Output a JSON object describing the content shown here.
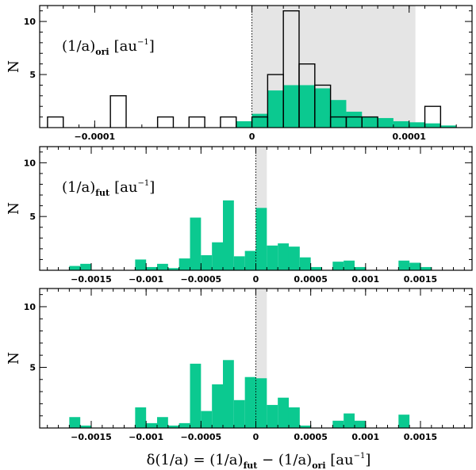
{
  "chart_data": [
    {
      "type": "histogram",
      "label_main": "(1/a)",
      "label_sub": "ori",
      "label_unit": "[au",
      "label_sup": "−1",
      "label_close": "]",
      "ylabel": "N",
      "xlim": [
        -0.000135,
        0.00014
      ],
      "ylim": [
        0,
        11.5
      ],
      "yticks": [
        5,
        10
      ],
      "xticks": [
        -0.0001,
        0,
        0.0001
      ],
      "xtick_labels": [
        "−0.0001",
        "0",
        "0.0001"
      ],
      "minor_step": 1e-05,
      "shade": [
        0,
        0.000104
      ],
      "zero_line": 0,
      "bin_width": 1e-05,
      "filled": [
        {
          "x0": -1e-05,
          "x1": 0.0,
          "n": 0.6
        },
        {
          "x0": 0.0,
          "x1": 1e-05,
          "n": 1.3
        },
        {
          "x0": 1e-05,
          "x1": 2e-05,
          "n": 3.5
        },
        {
          "x0": 2e-05,
          "x1": 3e-05,
          "n": 4.0
        },
        {
          "x0": 3e-05,
          "x1": 4e-05,
          "n": 4.0
        },
        {
          "x0": 4e-05,
          "x1": 5e-05,
          "n": 3.7
        },
        {
          "x0": 5e-05,
          "x1": 6e-05,
          "n": 2.6
        },
        {
          "x0": 6e-05,
          "x1": 7e-05,
          "n": 1.5
        },
        {
          "x0": 7e-05,
          "x1": 8e-05,
          "n": 1.0
        },
        {
          "x0": 8e-05,
          "x1": 9e-05,
          "n": 0.9
        },
        {
          "x0": 9e-05,
          "x1": 0.0001,
          "n": 0.6
        },
        {
          "x0": 0.0001,
          "x1": 0.00011,
          "n": 0.5
        },
        {
          "x0": 0.00011,
          "x1": 0.00012,
          "n": 0.4
        },
        {
          "x0": 0.00012,
          "x1": 0.00013,
          "n": 0.2
        }
      ],
      "outline": [
        {
          "x0": -0.00013,
          "x1": -0.00012,
          "n": 1
        },
        {
          "x0": -9e-05,
          "x1": -8e-05,
          "n": 3
        },
        {
          "x0": -6e-05,
          "x1": -5e-05,
          "n": 1
        },
        {
          "x0": -4e-05,
          "x1": -3e-05,
          "n": 1
        },
        {
          "x0": -2e-05,
          "x1": -1e-05,
          "n": 1
        },
        {
          "x0": 0.0,
          "x1": 1e-05,
          "n": 1
        },
        {
          "x0": 1e-05,
          "x1": 2e-05,
          "n": 5
        },
        {
          "x0": 2e-05,
          "x1": 3e-05,
          "n": 11
        },
        {
          "x0": 3e-05,
          "x1": 4e-05,
          "n": 6
        },
        {
          "x0": 4e-05,
          "x1": 5e-05,
          "n": 4
        },
        {
          "x0": 5e-05,
          "x1": 6e-05,
          "n": 1
        },
        {
          "x0": 6e-05,
          "x1": 7e-05,
          "n": 1
        },
        {
          "x0": 7e-05,
          "x1": 8e-05,
          "n": 1
        },
        {
          "x0": 0.00011,
          "x1": 0.00012,
          "n": 2
        }
      ]
    },
    {
      "type": "histogram",
      "label_main": "(1/a)",
      "label_sub": "fut",
      "label_unit": "[au",
      "label_sup": "−1",
      "label_close": "]",
      "ylabel": "N",
      "xlim": [
        -0.00197,
        0.00197
      ],
      "ylim": [
        0,
        11.5
      ],
      "yticks": [
        5,
        10
      ],
      "xticks": [
        -0.0015,
        -0.001,
        -0.0005,
        0,
        0.0005,
        0.001,
        0.0015
      ],
      "xtick_labels": [
        "−0.0015",
        "−0.001",
        "−0.0005",
        "0",
        "0.0005",
        "0.001",
        "0.0015"
      ],
      "minor_step": 0.0001,
      "shade": [
        0,
        0.0001
      ],
      "zero_line": 0,
      "bin_width": 0.0001,
      "filled": [
        {
          "x0": -0.0017,
          "x1": -0.0016,
          "n": 0.4
        },
        {
          "x0": -0.0016,
          "x1": -0.0015,
          "n": 0.6
        },
        {
          "x0": -0.0011,
          "x1": -0.001,
          "n": 1.0
        },
        {
          "x0": -0.001,
          "x1": -0.0009,
          "n": 0.3
        },
        {
          "x0": -0.0009,
          "x1": -0.0008,
          "n": 0.6
        },
        {
          "x0": -0.0008,
          "x1": -0.0007,
          "n": 0.2
        },
        {
          "x0": -0.0007,
          "x1": -0.0006,
          "n": 1.1
        },
        {
          "x0": -0.0006,
          "x1": -0.0005,
          "n": 4.9
        },
        {
          "x0": -0.0005,
          "x1": -0.0004,
          "n": 1.4
        },
        {
          "x0": -0.0004,
          "x1": -0.0003,
          "n": 2.6
        },
        {
          "x0": -0.0003,
          "x1": -0.0002,
          "n": 6.5
        },
        {
          "x0": -0.0002,
          "x1": -0.0001,
          "n": 1.3
        },
        {
          "x0": -0.0001,
          "x1": 0.0,
          "n": 1.8
        },
        {
          "x0": 0.0,
          "x1": 0.0001,
          "n": 5.8
        },
        {
          "x0": 0.0001,
          "x1": 0.0002,
          "n": 2.3
        },
        {
          "x0": 0.0002,
          "x1": 0.0003,
          "n": 2.5
        },
        {
          "x0": 0.0003,
          "x1": 0.0004,
          "n": 2.2
        },
        {
          "x0": 0.0004,
          "x1": 0.0005,
          "n": 1.2
        },
        {
          "x0": 0.0005,
          "x1": 0.0006,
          "n": 0.3
        },
        {
          "x0": 0.0007,
          "x1": 0.0008,
          "n": 0.8
        },
        {
          "x0": 0.0008,
          "x1": 0.0009,
          "n": 0.9
        },
        {
          "x0": 0.0009,
          "x1": 0.001,
          "n": 0.3
        },
        {
          "x0": 0.0013,
          "x1": 0.0014,
          "n": 0.9
        },
        {
          "x0": 0.0014,
          "x1": 0.0015,
          "n": 0.7
        },
        {
          "x0": 0.0015,
          "x1": 0.0016,
          "n": 0.3
        }
      ],
      "outline": []
    },
    {
      "type": "histogram",
      "label_main": "",
      "label_sub": "",
      "label_unit": "",
      "label_sup": "",
      "label_close": "",
      "ylabel": "N",
      "xlabel": "δ(1/a) = (1/a)fut − (1/a)ori [au−1]",
      "xlim": [
        -0.00197,
        0.00197
      ],
      "ylim": [
        0,
        11.5
      ],
      "yticks": [
        5,
        10
      ],
      "xticks": [
        -0.0015,
        -0.001,
        -0.0005,
        0,
        0.0005,
        0.001,
        0.0015
      ],
      "xtick_labels": [
        "−0.0015",
        "−0.001",
        "−0.0005",
        "0",
        "0.0005",
        "0.001",
        "0.0015"
      ],
      "minor_step": 0.0001,
      "shade": [
        0,
        0.0001
      ],
      "zero_line": 0,
      "bin_width": 0.0001,
      "filled": [
        {
          "x0": -0.0017,
          "x1": -0.0016,
          "n": 0.9
        },
        {
          "x0": -0.0016,
          "x1": -0.0015,
          "n": 0.2
        },
        {
          "x0": -0.0011,
          "x1": -0.001,
          "n": 1.7
        },
        {
          "x0": -0.001,
          "x1": -0.0009,
          "n": 0.4
        },
        {
          "x0": -0.0009,
          "x1": -0.0008,
          "n": 0.9
        },
        {
          "x0": -0.0008,
          "x1": -0.0007,
          "n": 0.2
        },
        {
          "x0": -0.0007,
          "x1": -0.0006,
          "n": 0.4
        },
        {
          "x0": -0.0006,
          "x1": -0.0005,
          "n": 5.3
        },
        {
          "x0": -0.0005,
          "x1": -0.0004,
          "n": 1.4
        },
        {
          "x0": -0.0004,
          "x1": -0.0003,
          "n": 3.6
        },
        {
          "x0": -0.0003,
          "x1": -0.0002,
          "n": 5.6
        },
        {
          "x0": -0.0002,
          "x1": -0.0001,
          "n": 2.3
        },
        {
          "x0": -0.0001,
          "x1": 0.0,
          "n": 4.2
        },
        {
          "x0": 0.0,
          "x1": 0.0001,
          "n": 4.1
        },
        {
          "x0": 0.0001,
          "x1": 0.0002,
          "n": 1.9
        },
        {
          "x0": 0.0002,
          "x1": 0.0003,
          "n": 2.5
        },
        {
          "x0": 0.0003,
          "x1": 0.0004,
          "n": 1.7
        },
        {
          "x0": 0.0004,
          "x1": 0.0005,
          "n": 0.2
        },
        {
          "x0": 0.0007,
          "x1": 0.0008,
          "n": 0.6
        },
        {
          "x0": 0.0008,
          "x1": 0.0009,
          "n": 1.2
        },
        {
          "x0": 0.0009,
          "x1": 0.001,
          "n": 0.6
        },
        {
          "x0": 0.0013,
          "x1": 0.0014,
          "n": 1.1
        }
      ],
      "outline": []
    }
  ],
  "colors": {
    "fill": "#0bc990",
    "shade": "#e5e5e5",
    "axis": "#000000",
    "outline": "#000000"
  },
  "xlabel_parts": {
    "delta": "δ(1/a) = (1/a)",
    "sub1": "fut",
    "minus": " − (1/a)",
    "sub2": "ori",
    "unit": " [au",
    "sup": "−1",
    "close": "]"
  }
}
